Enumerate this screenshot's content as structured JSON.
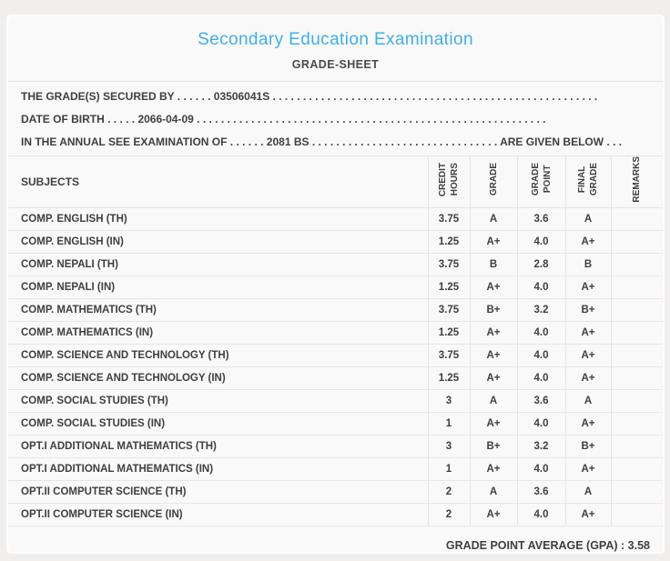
{
  "header": {
    "title": "Secondary Education Examination",
    "subtitle": "GRADE-SHEET"
  },
  "info": {
    "lines": [
      "THE GRADE(S) SECURED BY . . . . . . 03506041S . . . . . . . . . . . . . . . . . . . . . . . . . . . . . . . . . . . . . . . . . . . . . . . . . . . . . .",
      "DATE OF BIRTH . . . . . 2066-04-09 . . . . . . . . . . . . . . . . . . . . . . . . . . . . . . . . . . . . . . . . . . . . . . . . . . . . . . . . . .",
      "IN THE ANNUAL SEE EXAMINATION OF . . . . . . 2081 BS . . . . . . . . . . . . . . . . . . . . . . . . . . . . . . . ARE GIVEN BELOW . . ."
    ],
    "symbol_number": "03506041S",
    "date_of_birth": "2066-04-09",
    "examination_year": "2081 BS"
  },
  "table": {
    "columns": [
      "SUBJECTS",
      "CREDIT\nHOURS",
      "GRADE",
      "GRADE\nPOINT",
      "FINAL\nGRADE",
      "REMARKS"
    ],
    "rows": [
      {
        "subject": "COMP. ENGLISH (TH)",
        "credit_hours": "3.75",
        "grade": "A",
        "grade_point": "3.6",
        "final_grade": "A",
        "remarks": ""
      },
      {
        "subject": "COMP. ENGLISH (IN)",
        "credit_hours": "1.25",
        "grade": "A+",
        "grade_point": "4.0",
        "final_grade": "A+",
        "remarks": ""
      },
      {
        "subject": "COMP. NEPALI (TH)",
        "credit_hours": "3.75",
        "grade": "B",
        "grade_point": "2.8",
        "final_grade": "B",
        "remarks": ""
      },
      {
        "subject": "COMP. NEPALI (IN)",
        "credit_hours": "1.25",
        "grade": "A+",
        "grade_point": "4.0",
        "final_grade": "A+",
        "remarks": ""
      },
      {
        "subject": "COMP. MATHEMATICS (TH)",
        "credit_hours": "3.75",
        "grade": "B+",
        "grade_point": "3.2",
        "final_grade": "B+",
        "remarks": ""
      },
      {
        "subject": "COMP. MATHEMATICS (IN)",
        "credit_hours": "1.25",
        "grade": "A+",
        "grade_point": "4.0",
        "final_grade": "A+",
        "remarks": ""
      },
      {
        "subject": "COMP. SCIENCE AND TECHNOLOGY (TH)",
        "credit_hours": "3.75",
        "grade": "A+",
        "grade_point": "4.0",
        "final_grade": "A+",
        "remarks": ""
      },
      {
        "subject": "COMP. SCIENCE AND TECHNOLOGY (IN)",
        "credit_hours": "1.25",
        "grade": "A+",
        "grade_point": "4.0",
        "final_grade": "A+",
        "remarks": ""
      },
      {
        "subject": "COMP. SOCIAL STUDIES (TH)",
        "credit_hours": "3",
        "grade": "A",
        "grade_point": "3.6",
        "final_grade": "A",
        "remarks": ""
      },
      {
        "subject": "COMP. SOCIAL STUDIES (IN)",
        "credit_hours": "1",
        "grade": "A+",
        "grade_point": "4.0",
        "final_grade": "A+",
        "remarks": ""
      },
      {
        "subject": "OPT.I ADDITIONAL MATHEMATICS (TH)",
        "credit_hours": "3",
        "grade": "B+",
        "grade_point": "3.2",
        "final_grade": "B+",
        "remarks": ""
      },
      {
        "subject": "OPT.I ADDITIONAL MATHEMATICS (IN)",
        "credit_hours": "1",
        "grade": "A+",
        "grade_point": "4.0",
        "final_grade": "A+",
        "remarks": ""
      },
      {
        "subject": "OPT.II COMPUTER SCIENCE (TH)",
        "credit_hours": "2",
        "grade": "A",
        "grade_point": "3.6",
        "final_grade": "A",
        "remarks": ""
      },
      {
        "subject": "OPT.II COMPUTER SCIENCE (IN)",
        "credit_hours": "2",
        "grade": "A+",
        "grade_point": "4.0",
        "final_grade": "A+",
        "remarks": ""
      }
    ]
  },
  "footer": {
    "gpa_label": "GRADE POINT AVERAGE (GPA) :",
    "gpa_value": "3.58"
  },
  "colors": {
    "accent_blue": "#3fafe8",
    "text": "#3f3f3f",
    "border": "#e4e1e1",
    "card_background": "#faf9f9",
    "page_background": "#f1eeee"
  }
}
